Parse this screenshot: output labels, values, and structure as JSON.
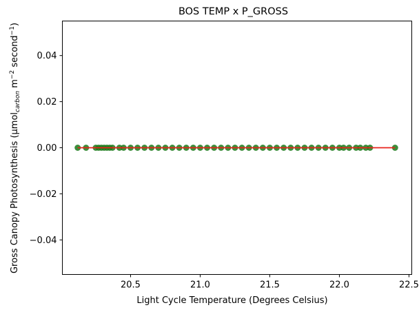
{
  "chart_data": {
    "type": "scatter",
    "title": "BOS TEMP x P_GROSS",
    "xlabel": "Light Cycle Temperature (Degrees Celsius)",
    "ylabel": {
      "prefix": "Gross Canopy Photosynthesis (µmol",
      "subscript": "carbon",
      "mid": " m",
      "sup1": "−2",
      "mid2": " second",
      "sup2": "−1",
      "suffix": ")"
    },
    "xlim": [
      20.01,
      22.52
    ],
    "ylim": [
      -0.055,
      0.055
    ],
    "xticks": [
      {
        "value": 20.5,
        "label": "20.5"
      },
      {
        "value": 21.0,
        "label": "21.0"
      },
      {
        "value": 21.5,
        "label": "21.5"
      },
      {
        "value": 22.0,
        "label": "22.0"
      },
      {
        "value": 22.5,
        "label": "22.5"
      }
    ],
    "yticks": [
      {
        "value": 0.04,
        "label": "0.04"
      },
      {
        "value": 0.02,
        "label": "0.02"
      },
      {
        "value": 0.0,
        "label": "0.00"
      },
      {
        "value": -0.02,
        "label": "−0.02"
      },
      {
        "value": -0.04,
        "label": "−0.04"
      }
    ],
    "grid": false,
    "series": [
      {
        "kind": "scatter",
        "color": "#1a7a1a",
        "x": [
          20.12,
          20.18,
          20.25,
          20.27,
          20.29,
          20.31,
          20.33,
          20.35,
          20.37,
          20.42,
          20.45,
          20.5,
          20.55,
          20.6,
          20.65,
          20.7,
          20.75,
          20.8,
          20.85,
          20.9,
          20.95,
          21.0,
          21.05,
          21.1,
          21.15,
          21.2,
          21.25,
          21.3,
          21.35,
          21.4,
          21.45,
          21.5,
          21.55,
          21.6,
          21.65,
          21.7,
          21.75,
          21.8,
          21.85,
          21.9,
          21.95,
          22.0,
          22.03,
          22.07,
          22.12,
          22.15,
          22.19,
          22.22,
          22.4
        ],
        "y": [
          0,
          0,
          0,
          0,
          0,
          0,
          0,
          0,
          0,
          0,
          0,
          0,
          0,
          0,
          0,
          0,
          0,
          0,
          0,
          0,
          0,
          0,
          0,
          0,
          0,
          0,
          0,
          0,
          0,
          0,
          0,
          0,
          0,
          0,
          0,
          0,
          0,
          0,
          0,
          0,
          0,
          0,
          0,
          0,
          0,
          0,
          0,
          0,
          0
        ]
      },
      {
        "kind": "line",
        "color": "#e8231b",
        "x": [
          20.12,
          22.4
        ],
        "y": [
          0,
          0
        ]
      }
    ]
  }
}
